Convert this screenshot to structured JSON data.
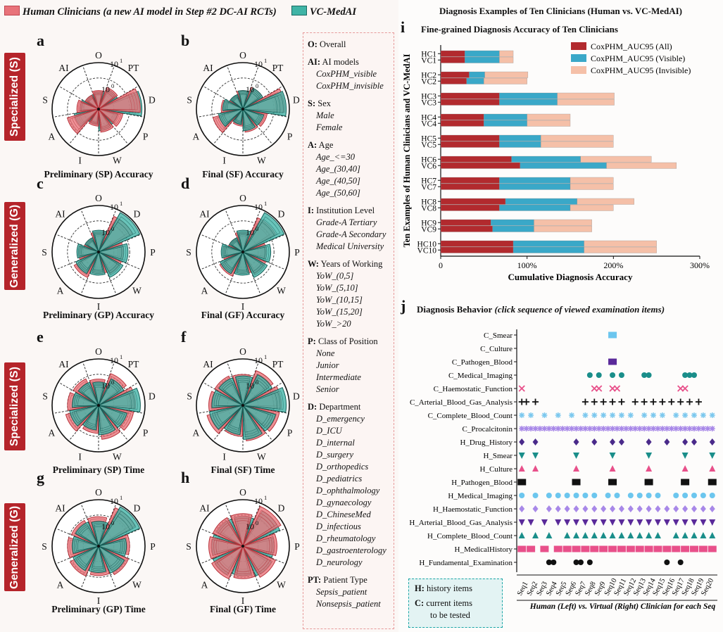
{
  "legend_top": {
    "human": {
      "label": "Human Clinicians (a new AI model in Step #2 DC-AI RCTs)",
      "color": "#e8737a"
    },
    "vc": {
      "label": "VC-MedAI",
      "color": "#3fb4a6"
    }
  },
  "side_labels": [
    "Specialized (S)",
    "Generalized (G)",
    "Specialized (S)",
    "Generalized (G)"
  ],
  "polar_panels": [
    {
      "letter": "a",
      "caption": "Preliminary (SP) Accuracy",
      "labels": [
        "O",
        "PT",
        "D",
        "P",
        "W",
        "I",
        "A",
        "S",
        "AI"
      ],
      "scale_outer": "10",
      "scale_outer_exp": "1",
      "scale_inner": "10",
      "scale_inner_exp": "0",
      "human": [
        1.2,
        1.5,
        2.7,
        1.6,
        1.5,
        1.1,
        2.1,
        1.4,
        1.0
      ],
      "vc": [
        1.1,
        1.4,
        2.8,
        1.3,
        1.4,
        1.0,
        1.6,
        1.2,
        1.0
      ],
      "lead": "human"
    },
    {
      "letter": "b",
      "caption": "Final (SF) Accuracy",
      "labels": [
        "O",
        "PT",
        "D",
        "P",
        "W",
        "I",
        "A",
        "S",
        "AI"
      ],
      "scale_outer": "10",
      "scale_outer_exp": "1",
      "scale_inner": "10",
      "scale_inner_exp": "0",
      "human": [
        1.2,
        1.5,
        2.7,
        1.6,
        1.5,
        1.1,
        2.0,
        1.4,
        1.0
      ],
      "vc": [
        1.2,
        1.5,
        2.8,
        1.4,
        1.4,
        1.0,
        1.6,
        1.3,
        1.0
      ],
      "lead": "vc"
    },
    {
      "letter": "c",
      "caption": "Preliminary (GP) Accuracy",
      "labels": [
        "O",
        "D",
        "P",
        "W",
        "I",
        "A",
        "S",
        "AI"
      ],
      "scale_outer": "10",
      "scale_outer_exp": "1",
      "scale_inner": "10",
      "scale_inner_exp": "0",
      "human": [
        1.3,
        2.5,
        1.6,
        1.6,
        1.4,
        1.8,
        1.3,
        1.0
      ],
      "vc": [
        1.4,
        2.9,
        1.9,
        1.8,
        1.5,
        1.6,
        1.4,
        1.0
      ],
      "lead": "vc"
    },
    {
      "letter": "d",
      "caption": "Final (GF) Accuracy",
      "labels": [
        "O",
        "D",
        "P",
        "W",
        "I",
        "A",
        "S",
        "AI"
      ],
      "scale_outer": "10",
      "scale_outer_exp": "1",
      "scale_inner": "10",
      "scale_inner_exp": "0",
      "human": [
        1.3,
        2.4,
        1.5,
        1.6,
        1.4,
        1.7,
        1.3,
        1.0
      ],
      "vc": [
        1.4,
        2.9,
        1.8,
        1.8,
        1.5,
        1.6,
        1.4,
        1.0
      ],
      "lead": "vc"
    },
    {
      "letter": "e",
      "caption": "Preliminary (SP) Time",
      "labels": [
        "O",
        "PT",
        "D",
        "P",
        "W",
        "I",
        "A",
        "S",
        "AI"
      ],
      "scale_outer": "10",
      "scale_outer_exp": "1",
      "scale_inner": "10",
      "scale_inner_exp": "0",
      "human": [
        1.7,
        2.2,
        2.4,
        2.3,
        2.2,
        1.8,
        2.2,
        2.0,
        1.9
      ],
      "vc": [
        1.5,
        1.9,
        2.7,
        1.9,
        1.9,
        1.6,
        1.9,
        1.7,
        1.6
      ],
      "lead": "vc"
    },
    {
      "letter": "f",
      "caption": "Final (SF) Time",
      "labels": [
        "O",
        "PT",
        "D",
        "P",
        "W",
        "I",
        "A",
        "S",
        "AI"
      ],
      "scale_outer": "10",
      "scale_outer_exp": "1",
      "scale_inner": "10",
      "scale_inner_exp": "0",
      "human": [
        2.0,
        2.4,
        2.5,
        2.4,
        2.3,
        2.0,
        2.4,
        2.2,
        2.1
      ],
      "vc": [
        1.9,
        2.2,
        2.8,
        2.2,
        2.2,
        1.9,
        2.2,
        2.0,
        1.9
      ],
      "lead": "vc"
    },
    {
      "letter": "g",
      "caption": "Preliminary (GP) Time",
      "labels": [
        "O",
        "D",
        "P",
        "W",
        "I",
        "A",
        "S",
        "AI"
      ],
      "scale_outer": "10",
      "scale_outer_exp": "1",
      "scale_inner": "10",
      "scale_inner_exp": "0",
      "human": [
        1.9,
        2.7,
        2.0,
        2.1,
        1.9,
        2.1,
        2.0,
        1.9
      ],
      "vc": [
        1.6,
        2.9,
        1.8,
        1.9,
        1.7,
        1.8,
        1.7,
        1.7
      ],
      "lead": "vc"
    },
    {
      "letter": "h",
      "caption": "Final (GF) Time",
      "labels": [
        "O",
        "D",
        "P",
        "W",
        "I",
        "A",
        "S",
        "AI"
      ],
      "scale_outer": "10",
      "scale_outer_exp": "1",
      "scale_inner": "10",
      "scale_inner_exp": "0",
      "human": [
        2.1,
        2.8,
        2.2,
        2.3,
        2.1,
        2.3,
        2.2,
        2.1
      ],
      "vc": [
        1.9,
        2.6,
        2.0,
        2.1,
        1.9,
        2.1,
        2.0,
        1.9
      ],
      "lead": "human"
    }
  ],
  "legend_groups": [
    {
      "key": "O:",
      "name": "Overall",
      "items": []
    },
    {
      "key": "AI:",
      "name": "AI models",
      "items": [
        "CoxPHM_visible",
        "CoxPHM_invisible"
      ]
    },
    {
      "key": "S:",
      "name": "Sex",
      "items": [
        "Male",
        "Female"
      ]
    },
    {
      "key": "A:",
      "name": "Age",
      "items": [
        "Age_<=30",
        "Age_(30,40]",
        "Age_(40,50]",
        "Age_(50,60]"
      ]
    },
    {
      "key": "I:",
      "name": "Institution Level",
      "items": [
        "Grade-A Tertiary",
        "Grade-A Secondary",
        "Medical University"
      ]
    },
    {
      "key": "W:",
      "name": "Years of Working",
      "items": [
        "YoW_(0,5]",
        "YoW_(5,10]",
        "YoW_(10,15]",
        "YoW_(15,20]",
        "YoW_>20"
      ]
    },
    {
      "key": "P:",
      "name": "Class of Position",
      "items": [
        "None",
        "Junior",
        "Intermediate",
        "Senior"
      ]
    },
    {
      "key": "D:",
      "name": "Department",
      "items": [
        "D_emergency",
        "D_ICU",
        "D_internal",
        "D_surgery",
        "D_orthopedics",
        "D_pediatrics",
        "D_ophthalmology",
        "D_gynaecology",
        "D_ChineseMed",
        "D_infectious",
        "D_rheumatology",
        "D_gastroenterology",
        "D_neurology"
      ]
    },
    {
      "key": "PT:",
      "name": "Patient Type",
      "items": [
        "Sepsis_patient",
        "Nonsepsis_patient"
      ]
    }
  ],
  "right": {
    "main_title": "Diagnosis Examples of Ten Clinicians (Human vs. VC-MedAI)",
    "i_letter": "i",
    "i_title": "Fine-grained Diagnosis Accuracy of  Ten Clinicians",
    "j_letter": "j",
    "j_title": "Diagnosis Behavior",
    "j_subtitle": " (click sequence of viewed examination items)",
    "x_axis_j": "Human (Left) vs. Virtual (Right) Clinician for each Seq",
    "note_h": "history items",
    "note_h_key": "H:",
    "note_c_key": "C:",
    "note_c": "current items",
    "note_c2": "to be tested"
  },
  "chart_data": [
    {
      "type": "bar",
      "orientation": "horizontal-stacked",
      "title": "Fine-grained Diagnosis Accuracy of  Ten Clinicians",
      "xlabel": "Cumulative Diagnosis Accuracy",
      "ylabel": "Ten Examples of Human Clinicians and VC-MedAI",
      "xlim": [
        0,
        300
      ],
      "xticks": [
        "0",
        "100%",
        "200%",
        "300%"
      ],
      "categories": [
        "HC1",
        "VC1",
        "HC2",
        "VC2",
        "HC3",
        "VC3",
        "HC4",
        "VC4",
        "HC5",
        "VC5",
        "HC6",
        "VC6",
        "HC7",
        "VC7",
        "HC8",
        "VC8",
        "HC9",
        "VC9",
        "HC10",
        "VC10"
      ],
      "series": [
        {
          "name": "CoxPHM_AUC95 (All)",
          "color": "#b22a2e",
          "values": [
            28,
            28,
            33,
            30,
            68,
            68,
            50,
            50,
            68,
            68,
            82,
            92,
            68,
            68,
            75,
            68,
            58,
            60,
            84,
            84
          ]
        },
        {
          "name": "CoxPHM_AUC95 (Visible)",
          "color": "#3aa8c8",
          "values": [
            40,
            40,
            18,
            20,
            67,
            67,
            50,
            50,
            48,
            48,
            80,
            100,
            82,
            82,
            83,
            82,
            50,
            48,
            82,
            82
          ]
        },
        {
          "name": "CoxPHM_AUC95 (Invisible)",
          "color": "#f5c0a8",
          "values": [
            16,
            16,
            50,
            50,
            66,
            66,
            50,
            50,
            84,
            84,
            82,
            81,
            50,
            50,
            66,
            50,
            67,
            67,
            84,
            84
          ]
        }
      ]
    },
    {
      "type": "scatter",
      "title": "Diagnosis Behavior (click sequence of viewed examination items)",
      "xlabel": "Human (Left) vs. Virtual (Right) Clinician for each Seq",
      "x": [
        "Seq1",
        "Seq2",
        "Seq3",
        "Seq4",
        "Seq5",
        "Seq6",
        "Seq7",
        "Seq8",
        "Seq9",
        "Seq10",
        "Seq11",
        "Seq12",
        "Seq13",
        "Seq14",
        "Seq15",
        "Seq16",
        "Seq17",
        "Seq18",
        "Seq19",
        "Seq20"
      ],
      "rows": [
        {
          "name": "C_Smear",
          "color": "#6cc6ee",
          "marker": "square",
          "positions": [
            21
          ]
        },
        {
          "name": "C_Culture",
          "color": "#6cc6ee",
          "marker": "square",
          "positions": []
        },
        {
          "name": "C_Pathogen_Blood",
          "color": "#5a2a9a",
          "marker": "square",
          "positions": [
            21
          ]
        },
        {
          "name": "C_Medical_Imaging",
          "color": "#1a8e8a",
          "marker": "circle",
          "positions": [
            16,
            18,
            21,
            23,
            28,
            29,
            37,
            38,
            39
          ]
        },
        {
          "name": "C_Haemostatic_Function",
          "color": "#e8508a",
          "marker": "x",
          "positions": [
            1,
            17,
            18,
            21,
            22,
            36,
            37
          ]
        },
        {
          "name": "C_Arterial_Blood_Gas_Analysis",
          "color": "#111111",
          "marker": "plus",
          "positions": [
            1,
            2,
            4,
            15,
            17,
            19,
            21,
            23,
            26,
            28,
            30,
            32,
            34,
            36,
            38,
            40
          ]
        },
        {
          "name": "C_Complete_Blood_Count",
          "color": "#7cc8ee",
          "marker": "star",
          "positions": [
            1,
            3,
            6,
            9,
            12,
            15,
            17,
            19,
            21,
            23,
            25,
            28,
            30,
            32,
            35,
            37,
            39,
            41,
            43
          ]
        },
        {
          "name": "C_Procalcitonin",
          "color": "#a888e8",
          "marker": "star",
          "positions": [
            1,
            2,
            3,
            4,
            5,
            6,
            7,
            8,
            9,
            10,
            11,
            12,
            13,
            14,
            15,
            16,
            17,
            18,
            19,
            20,
            21,
            22,
            23,
            24,
            25,
            26,
            27,
            28,
            29,
            30,
            31,
            32,
            33,
            34,
            35,
            36,
            37,
            38,
            39,
            40,
            41,
            42,
            43
          ]
        },
        {
          "name": "H_Drug_History",
          "color": "#4a2a8a",
          "marker": "diamond",
          "positions": [
            1,
            4,
            13,
            17,
            21,
            23,
            29,
            33,
            37,
            39,
            43
          ]
        },
        {
          "name": "H_Smear",
          "color": "#1a8e8a",
          "marker": "tri-down",
          "positions": [
            1,
            4,
            13,
            21,
            29,
            37,
            43
          ]
        },
        {
          "name": "H_Culture",
          "color": "#e8508a",
          "marker": "tri-up",
          "positions": [
            1,
            4,
            13,
            21,
            29,
            37,
            43
          ]
        },
        {
          "name": "H_Pathogen_Blood",
          "color": "#111111",
          "marker": "square",
          "positions": [
            1,
            13,
            21,
            29,
            37,
            43
          ]
        },
        {
          "name": "H_Medical_Imaging",
          "color": "#6cc6ee",
          "marker": "circle",
          "positions": [
            1,
            4,
            7,
            9,
            11,
            13,
            15,
            17,
            20,
            22,
            25,
            27,
            29,
            31,
            35,
            37,
            39,
            41,
            43
          ]
        },
        {
          "name": "H_Haemostatic_Function",
          "color": "#a888e8",
          "marker": "diamond",
          "positions": [
            1,
            4,
            7,
            9,
            11,
            13,
            15,
            17,
            19,
            21,
            23,
            25,
            27,
            29,
            31,
            33,
            35,
            37,
            39,
            41,
            43
          ]
        },
        {
          "name": "H_Arterial_Blood_Gas_Analysis",
          "color": "#5a2a9a",
          "marker": "tri-down",
          "positions": [
            1,
            3,
            6,
            9,
            11,
            13,
            15,
            17,
            19,
            21,
            23,
            25,
            27,
            29,
            31,
            33,
            35,
            37,
            39,
            41,
            43
          ]
        },
        {
          "name": "H_Complete_Blood_Count",
          "color": "#1a8e8a",
          "marker": "tri-up",
          "positions": [
            1,
            4,
            7,
            11,
            13,
            15,
            17,
            19,
            21,
            23,
            25,
            27,
            29,
            31,
            35,
            37,
            39,
            41,
            43
          ]
        },
        {
          "name": "H_MedicalHistory",
          "color": "#e8508a",
          "marker": "square",
          "positions": [
            1,
            3,
            6,
            9,
            11,
            13,
            15,
            17,
            19,
            21,
            23,
            25,
            27,
            29,
            31,
            33,
            35,
            37,
            39,
            41,
            43
          ]
        },
        {
          "name": "H_Fundamental_Examination",
          "color": "#111111",
          "marker": "circle",
          "positions": [
            7,
            8,
            13,
            14,
            16,
            33,
            36
          ]
        }
      ]
    }
  ]
}
